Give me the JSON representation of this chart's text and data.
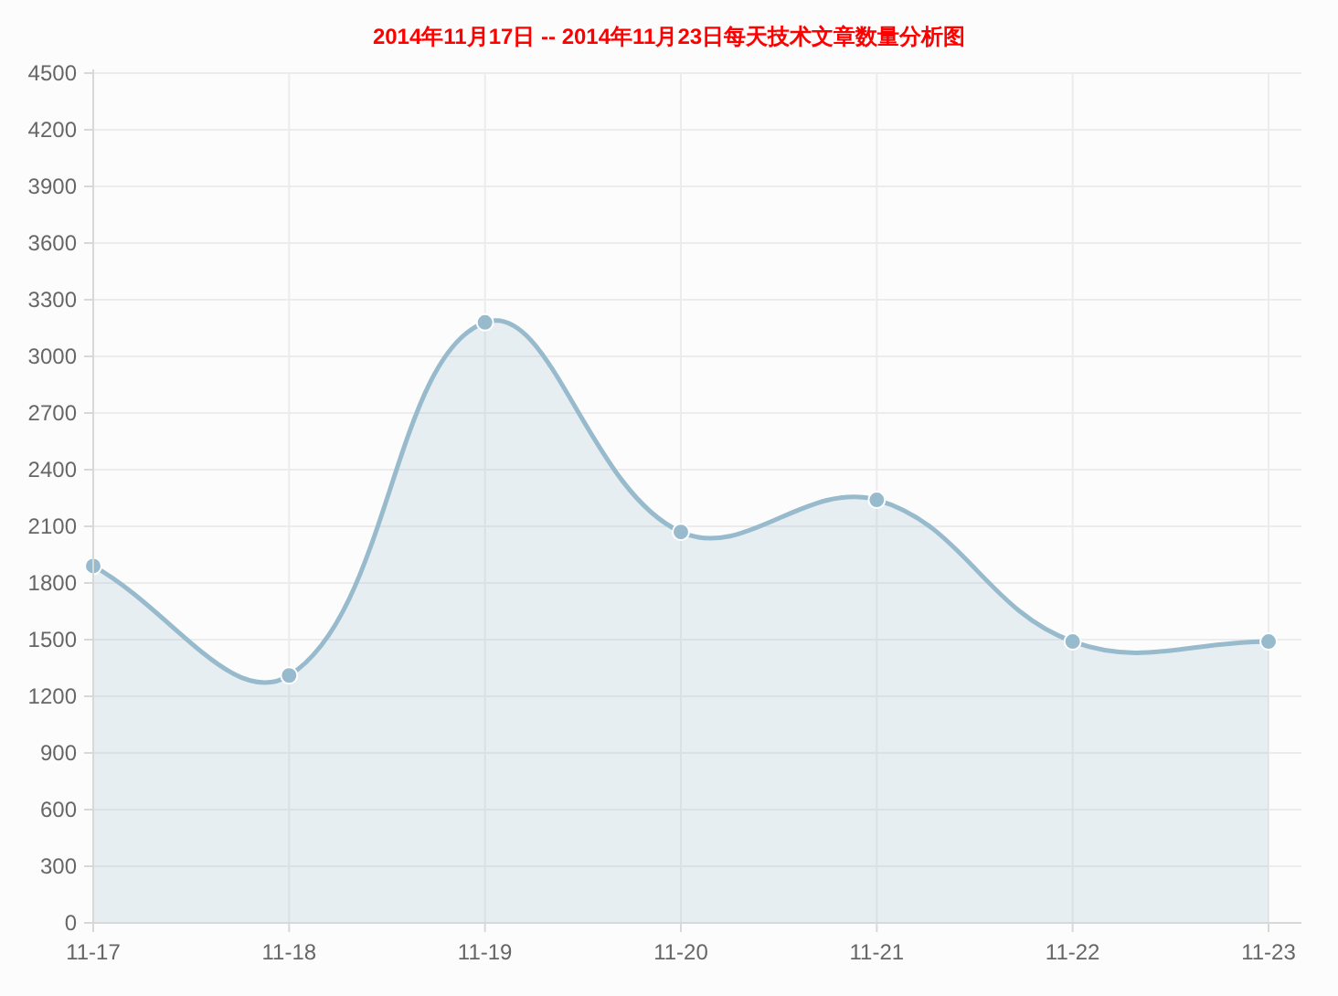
{
  "chart_data": {
    "type": "area",
    "title": "2014年11月17日 -- 2014年11月23日每天技术文章数量分析图",
    "categories": [
      "11-17",
      "11-18",
      "11-19",
      "11-20",
      "11-21",
      "11-22",
      "11-23"
    ],
    "series": [
      {
        "color": "#97bbcd",
        "values": [
          1890,
          1310,
          3180,
          2070,
          2240,
          1490,
          1490
        ]
      }
    ],
    "ylim": [
      0,
      4500
    ],
    "yticks": [
      0,
      300,
      600,
      900,
      1200,
      1500,
      1800,
      2100,
      2400,
      2700,
      3000,
      3300,
      3600,
      3900,
      4200,
      4500
    ],
    "grid": true,
    "marker": "circle"
  }
}
